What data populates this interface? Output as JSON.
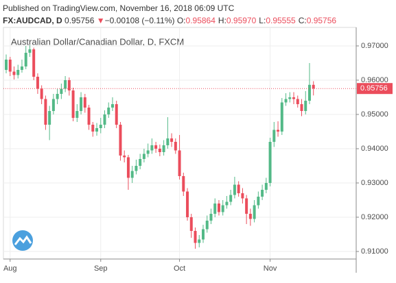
{
  "header": {
    "published": "Published on TradingView.com, November 16, 2018 06:09 UTC",
    "symbol": "FX:AUDCAD, D",
    "last": "0.95756",
    "arrow": "▼",
    "change": "−0.00108 (−0.11%)",
    "ohlc": [
      {
        "label": "O:",
        "value": "0.95864"
      },
      {
        "label": "H:",
        "value": "0.95970"
      },
      {
        "label": "L:",
        "value": "0.95555"
      },
      {
        "label": "C:",
        "value": "0.95756"
      }
    ]
  },
  "chart_data": {
    "type": "candlestick",
    "title": "Australian Dollar/Canadian Dollar, D, FXCM",
    "categories": [
      null,
      "Aug",
      null,
      null,
      null,
      null,
      null,
      null,
      null,
      null,
      null,
      null,
      null,
      null,
      null,
      null,
      null,
      null,
      null,
      null,
      null,
      null,
      null,
      null,
      "Sep",
      null,
      null,
      null,
      null,
      null,
      null,
      null,
      null,
      null,
      null,
      null,
      null,
      null,
      null,
      null,
      null,
      null,
      null,
      null,
      "Oct",
      null,
      null,
      null,
      null,
      null,
      null,
      null,
      null,
      null,
      null,
      null,
      null,
      null,
      null,
      null,
      null,
      null,
      null,
      null,
      null,
      null,
      null,
      "Nov",
      null,
      null,
      null,
      null,
      null,
      null,
      null,
      null,
      null,
      null,
      null
    ],
    "open": [
      0.963,
      0.966,
      0.9625,
      0.9615,
      0.963,
      0.964,
      0.968,
      0.969,
      0.961,
      0.9575,
      0.9545,
      0.947,
      0.951,
      0.9545,
      0.956,
      0.9575,
      0.96,
      0.957,
      0.949,
      0.951,
      0.955,
      0.952,
      0.947,
      0.945,
      0.946,
      0.947,
      0.95,
      0.952,
      0.953,
      0.947,
      0.938,
      0.9375,
      0.9315,
      0.9335,
      0.935,
      0.937,
      0.9385,
      0.9395,
      0.941,
      0.94,
      0.939,
      0.941,
      0.943,
      0.942,
      0.9395,
      0.932,
      0.9275,
      0.92,
      0.916,
      0.9125,
      0.9135,
      0.9165,
      0.919,
      0.921,
      0.924,
      0.9215,
      0.9235,
      0.9245,
      0.9265,
      0.9295,
      0.927,
      0.9255,
      0.921,
      0.9195,
      0.9235,
      0.926,
      0.928,
      0.93,
      0.942,
      0.9455,
      0.945,
      0.9535,
      0.9545,
      0.955,
      0.9545,
      0.953,
      0.951,
      0.954,
      0.95864
    ],
    "high": [
      0.9675,
      0.9668,
      0.964,
      0.9645,
      0.966,
      0.97,
      0.9702,
      0.9695,
      0.962,
      0.9585,
      0.9555,
      0.9525,
      0.956,
      0.9575,
      0.959,
      0.9612,
      0.9608,
      0.9578,
      0.953,
      0.9565,
      0.956,
      0.9528,
      0.9478,
      0.9475,
      0.949,
      0.9512,
      0.9535,
      0.955,
      0.954,
      0.9478,
      0.9395,
      0.9382,
      0.935,
      0.9368,
      0.9385,
      0.94,
      0.9415,
      0.943,
      0.942,
      0.9412,
      0.9425,
      0.9492,
      0.9445,
      0.943,
      0.944,
      0.933,
      0.9285,
      0.921,
      0.917,
      0.9148,
      0.9178,
      0.9205,
      0.9225,
      0.9255,
      0.925,
      0.925,
      0.9262,
      0.928,
      0.9318,
      0.9305,
      0.9285,
      0.9265,
      0.9225,
      0.925,
      0.9275,
      0.9295,
      0.9315,
      0.9432,
      0.9478,
      0.948,
      0.9548,
      0.9562,
      0.9565,
      0.9565,
      0.9555,
      0.9545,
      0.9568,
      0.965,
      0.9597
    ],
    "low": [
      0.962,
      0.9612,
      0.9602,
      0.9605,
      0.9622,
      0.9632,
      0.9668,
      0.96,
      0.956,
      0.953,
      0.9455,
      0.9425,
      0.95,
      0.953,
      0.9545,
      0.9565,
      0.9555,
      0.948,
      0.9478,
      0.95,
      0.9505,
      0.9455,
      0.9435,
      0.9438,
      0.9445,
      0.946,
      0.949,
      0.951,
      0.946,
      0.9365,
      0.936,
      0.928,
      0.93,
      0.9325,
      0.934,
      0.936,
      0.9375,
      0.9385,
      0.9388,
      0.9378,
      0.938,
      0.94,
      0.9405,
      0.9385,
      0.931,
      0.9262,
      0.919,
      0.914,
      0.9108,
      0.9112,
      0.9125,
      0.9155,
      0.918,
      0.92,
      0.9205,
      0.9205,
      0.9225,
      0.9235,
      0.9255,
      0.926,
      0.924,
      0.918,
      0.9175,
      0.9185,
      0.9225,
      0.925,
      0.927,
      0.929,
      0.9405,
      0.9435,
      0.944,
      0.9525,
      0.9535,
      0.953,
      0.952,
      0.9495,
      0.95,
      0.953,
      0.95555
    ],
    "close": [
      0.966,
      0.9625,
      0.9615,
      0.963,
      0.964,
      0.968,
      0.969,
      0.961,
      0.9575,
      0.9545,
      0.947,
      0.951,
      0.9545,
      0.956,
      0.9575,
      0.96,
      0.957,
      0.949,
      0.951,
      0.955,
      0.952,
      0.947,
      0.945,
      0.946,
      0.947,
      0.95,
      0.952,
      0.953,
      0.947,
      0.938,
      0.9375,
      0.9315,
      0.9335,
      0.935,
      0.937,
      0.9385,
      0.9395,
      0.941,
      0.94,
      0.939,
      0.941,
      0.943,
      0.942,
      0.9395,
      0.932,
      0.9275,
      0.92,
      0.916,
      0.9125,
      0.9135,
      0.9165,
      0.919,
      0.921,
      0.924,
      0.9215,
      0.9235,
      0.9245,
      0.9265,
      0.9295,
      0.927,
      0.9255,
      0.921,
      0.9195,
      0.9235,
      0.926,
      0.928,
      0.93,
      0.942,
      0.9455,
      0.945,
      0.9535,
      0.9545,
      0.955,
      0.9545,
      0.953,
      0.951,
      0.954,
      0.95864,
      0.95756
    ],
    "up_color": "#53b987",
    "down_color": "#eb4d5c",
    "last_price_color": "#eb4d5c",
    "ylim": [
      0.9078,
      0.9754
    ],
    "yticks": [
      {
        "value": 0.91,
        "label": "0.91000"
      },
      {
        "value": 0.92,
        "label": "0.92000"
      },
      {
        "value": 0.93,
        "label": "0.93000"
      },
      {
        "value": 0.94,
        "label": "0.94000"
      },
      {
        "value": 0.95,
        "label": "0.95000"
      },
      {
        "value": 0.96,
        "label": "0.96000"
      },
      {
        "value": 0.97,
        "label": "0.97000"
      }
    ],
    "grid": true
  }
}
